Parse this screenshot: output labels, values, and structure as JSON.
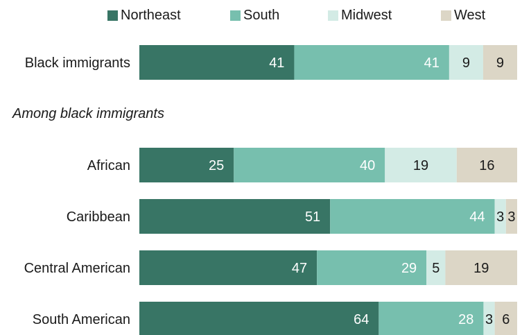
{
  "note": "Among black immigrants",
  "chart_data": {
    "type": "bar",
    "orientation": "horizontal",
    "stacked": true,
    "categories": [
      "Black immigrants",
      "African",
      "Caribbean",
      "Central American",
      "South American"
    ],
    "series": [
      {
        "name": "Northeast",
        "color": "#387565",
        "label_color": "#ffffff",
        "values": [
          41,
          25,
          51,
          47,
          64
        ]
      },
      {
        "name": "South",
        "color": "#77bfae",
        "label_color": "#ffffff",
        "values": [
          41,
          40,
          44,
          29,
          28
        ]
      },
      {
        "name": "Midwest",
        "color": "#d3ebe5",
        "label_color": "#1a1a1a",
        "values": [
          9,
          19,
          3,
          5,
          3
        ]
      },
      {
        "name": "West",
        "color": "#dcd6c6",
        "label_color": "#1a1a1a",
        "values": [
          9,
          16,
          3,
          19,
          6
        ]
      }
    ],
    "legend_position": "top",
    "grid": false
  }
}
